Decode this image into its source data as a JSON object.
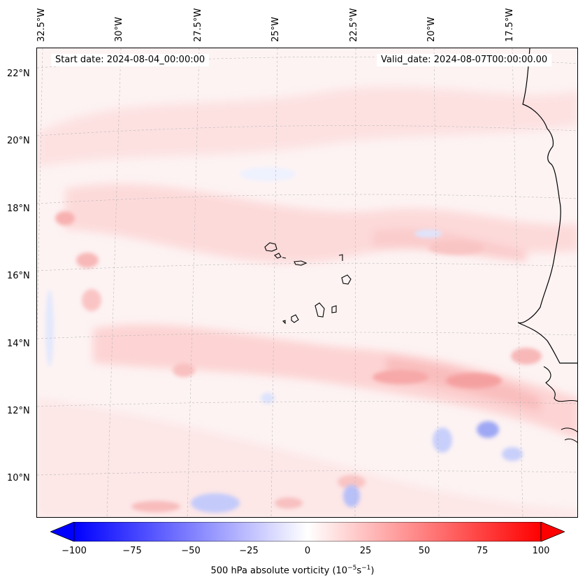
{
  "header": {
    "start_date": "Start date: 2024-08-04_00:00:00",
    "valid_date": "Valid_date: 2024-08-07T00:00:00.00"
  },
  "axes": {
    "lon_labels": [
      "32.5°W",
      "30°W",
      "27.5°W",
      "25°W",
      "22.5°W",
      "20°W",
      "17.5°W"
    ],
    "lat_labels": [
      "22°N",
      "20°N",
      "18°N",
      "16°N",
      "14°N",
      "12°N",
      "10°N"
    ]
  },
  "colorbar": {
    "ticks": [
      "−100",
      "−75",
      "−50",
      "−25",
      "0",
      "25",
      "50",
      "75",
      "100"
    ],
    "title": "500 hPa absolute vorticity (10",
    "title_exp1": "−5",
    "title_mid": "s",
    "title_exp2": "−1",
    "title_end": ")",
    "min": -100,
    "max": 100,
    "low_color": "#0000ff",
    "mid_color": "#ffffff",
    "high_color": "#ff0000"
  },
  "legend": {
    "projection": "map",
    "variable": "500 hPa absolute vorticity"
  }
}
